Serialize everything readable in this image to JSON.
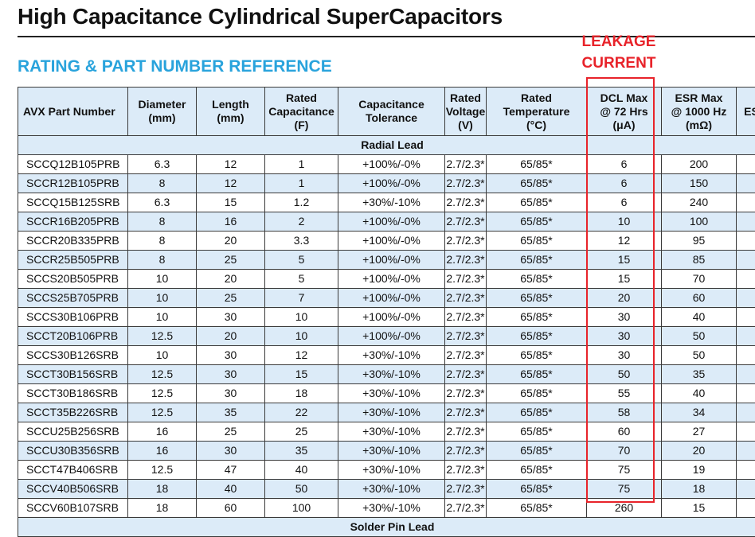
{
  "title": "High Capacitance Cylindrical SuperCapacitors",
  "section_title": "RATING & PART NUMBER REFERENCE",
  "annotation": {
    "line1": "LEAKAGE",
    "line2": "CURRENT",
    "color": "#e8232a"
  },
  "accent_color": "#29a3dc",
  "header_fill": "#dcebf8",
  "columns": [
    {
      "lines": [
        "AVX Part Number"
      ]
    },
    {
      "lines": [
        "Diameter",
        "(mm)"
      ]
    },
    {
      "lines": [
        "Length",
        "(mm)"
      ]
    },
    {
      "lines": [
        "Rated",
        "Capacitance",
        "(F)"
      ]
    },
    {
      "lines": [
        "Capacitance",
        "Tolerance"
      ]
    },
    {
      "lines": [
        "Rated",
        "Voltage",
        "(V)"
      ]
    },
    {
      "lines": [
        "Rated",
        "Temperature",
        "(°C)"
      ]
    },
    {
      "lines": [
        "DCL Max",
        "@ 72 Hrs",
        "(μA)"
      ]
    },
    {
      "lines": [
        "ESR Max",
        "@ 1000 Hz",
        "(mΩ)"
      ]
    },
    {
      "lines": [
        "ES"
      ]
    }
  ],
  "group_radial": "Radial Lead",
  "group_solder": "Solder Pin Lead",
  "rows": [
    [
      "SCCQ12B105PRB",
      "6.3",
      "12",
      "1",
      "+100%/-0%",
      "2.7/2.3*",
      "65/85*",
      "6",
      "200"
    ],
    [
      "SCCR12B105PRB",
      "8",
      "12",
      "1",
      "+100%/-0%",
      "2.7/2.3*",
      "65/85*",
      "6",
      "150"
    ],
    [
      "SCCQ15B125SRB",
      "6.3",
      "15",
      "1.2",
      "+30%/-10%",
      "2.7/2.3*",
      "65/85*",
      "6",
      "240"
    ],
    [
      "SCCR16B205PRB",
      "8",
      "16",
      "2",
      "+100%/-0%",
      "2.7/2.3*",
      "65/85*",
      "10",
      "100"
    ],
    [
      "SCCR20B335PRB",
      "8",
      "20",
      "3.3",
      "+100%/-0%",
      "2.7/2.3*",
      "65/85*",
      "12",
      "95"
    ],
    [
      "SCCR25B505PRB",
      "8",
      "25",
      "5",
      "+100%/-0%",
      "2.7/2.3*",
      "65/85*",
      "15",
      "85"
    ],
    [
      "SCCS20B505PRB",
      "10",
      "20",
      "5",
      "+100%/-0%",
      "2.7/2.3*",
      "65/85*",
      "15",
      "70"
    ],
    [
      "SCCS25B705PRB",
      "10",
      "25",
      "7",
      "+100%/-0%",
      "2.7/2.3*",
      "65/85*",
      "20",
      "60"
    ],
    [
      "SCCS30B106PRB",
      "10",
      "30",
      "10",
      "+100%/-0%",
      "2.7/2.3*",
      "65/85*",
      "30",
      "40"
    ],
    [
      "SCCT20B106PRB",
      "12.5",
      "20",
      "10",
      "+100%/-0%",
      "2.7/2.3*",
      "65/85*",
      "30",
      "50"
    ],
    [
      "SCCS30B126SRB",
      "10",
      "30",
      "12",
      "+30%/-10%",
      "2.7/2.3*",
      "65/85*",
      "30",
      "50"
    ],
    [
      "SCCT30B156SRB",
      "12.5",
      "30",
      "15",
      "+30%/-10%",
      "2.7/2.3*",
      "65/85*",
      "50",
      "35"
    ],
    [
      "SCCT30B186SRB",
      "12.5",
      "30",
      "18",
      "+30%/-10%",
      "2.7/2.3*",
      "65/85*",
      "55",
      "40"
    ],
    [
      "SCCT35B226SRB",
      "12.5",
      "35",
      "22",
      "+30%/-10%",
      "2.7/2.3*",
      "65/85*",
      "58",
      "34"
    ],
    [
      "SCCU25B256SRB",
      "16",
      "25",
      "25",
      "+30%/-10%",
      "2.7/2.3*",
      "65/85*",
      "60",
      "27"
    ],
    [
      "SCCU30B356SRB",
      "16",
      "30",
      "35",
      "+30%/-10%",
      "2.7/2.3*",
      "65/85*",
      "70",
      "20"
    ],
    [
      "SCCT47B406SRB",
      "12.5",
      "47",
      "40",
      "+30%/-10%",
      "2.7/2.3*",
      "65/85*",
      "75",
      "19"
    ],
    [
      "SCCV40B506SRB",
      "18",
      "40",
      "50",
      "+30%/-10%",
      "2.7/2.3*",
      "65/85*",
      "75",
      "18"
    ],
    [
      "SCCV60B107SRB",
      "18",
      "60",
      "100",
      "+30%/-10%",
      "2.7/2.3*",
      "65/85*",
      "260",
      "15"
    ]
  ]
}
